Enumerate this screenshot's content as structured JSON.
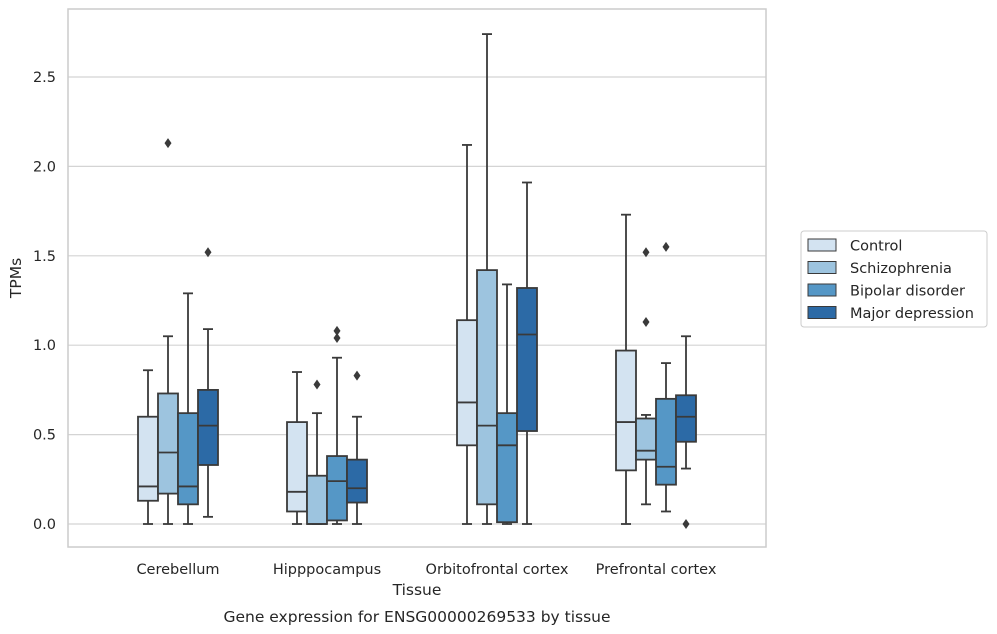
{
  "caption": "Gene expression for ENSG00000269533 by tissue",
  "chart_data": {
    "type": "box",
    "xlabel": "Tissue",
    "ylabel": "TPMs",
    "categories": [
      "Cerebellum",
      "Hipppocampus",
      "Orbitofrontal cortex",
      "Prefrontal cortex"
    ],
    "ylim": [
      -0.13,
      2.88
    ],
    "yticks": [
      0.0,
      0.5,
      1.0,
      1.5,
      2.0,
      2.5
    ],
    "ytick_labels": [
      "0.0",
      "0.5",
      "1.0",
      "1.5",
      "2.0",
      "2.5"
    ],
    "grid": "horizontal",
    "legend_position": "outside-right",
    "colors": {
      "line": "#3a3a3a",
      "grid": "#d4d4d4",
      "frame": "#cccccc"
    },
    "series": [
      {
        "name": "Control",
        "color": "#d3e3f1",
        "boxes": [
          {
            "q1": 0.13,
            "median": 0.21,
            "q3": 0.6,
            "whislo": 0.0,
            "whishi": 0.86,
            "fliers": []
          },
          {
            "q1": 0.07,
            "median": 0.18,
            "q3": 0.57,
            "whislo": 0.0,
            "whishi": 0.85,
            "fliers": []
          },
          {
            "q1": 0.44,
            "median": 0.68,
            "q3": 1.14,
            "whislo": 0.0,
            "whishi": 2.12,
            "fliers": []
          },
          {
            "q1": 0.3,
            "median": 0.57,
            "q3": 0.97,
            "whislo": 0.0,
            "whishi": 1.73,
            "fliers": []
          }
        ]
      },
      {
        "name": "Schizophrenia",
        "color": "#9dc4df",
        "boxes": [
          {
            "q1": 0.17,
            "median": 0.4,
            "q3": 0.73,
            "whislo": 0.0,
            "whishi": 1.05,
            "fliers": [
              2.13
            ]
          },
          {
            "q1": 0.0,
            "median": 0.0,
            "q3": 0.27,
            "whislo": 0.0,
            "whishi": 0.62,
            "fliers": [
              0.78
            ]
          },
          {
            "q1": 0.11,
            "median": 0.55,
            "q3": 1.42,
            "whislo": 0.0,
            "whishi": 2.74,
            "fliers": []
          },
          {
            "q1": 0.36,
            "median": 0.41,
            "q3": 0.59,
            "whislo": 0.11,
            "whishi": 0.61,
            "fliers": [
              1.13,
              1.52
            ]
          }
        ]
      },
      {
        "name": "Bipolar disorder",
        "color": "#5597c6",
        "boxes": [
          {
            "q1": 0.11,
            "median": 0.21,
            "q3": 0.62,
            "whislo": 0.0,
            "whishi": 1.29,
            "fliers": []
          },
          {
            "q1": 0.02,
            "median": 0.24,
            "q3": 0.38,
            "whislo": 0.0,
            "whishi": 0.93,
            "fliers": [
              1.04,
              1.08
            ]
          },
          {
            "q1": 0.01,
            "median": 0.44,
            "q3": 0.62,
            "whislo": 0.0,
            "whishi": 1.34,
            "fliers": []
          },
          {
            "q1": 0.22,
            "median": 0.32,
            "q3": 0.7,
            "whislo": 0.07,
            "whishi": 0.9,
            "fliers": [
              1.55
            ]
          }
        ]
      },
      {
        "name": "Major depression",
        "color": "#2c6aa6",
        "boxes": [
          {
            "q1": 0.33,
            "median": 0.55,
            "q3": 0.75,
            "whislo": 0.04,
            "whishi": 1.09,
            "fliers": [
              1.52
            ]
          },
          {
            "q1": 0.12,
            "median": 0.2,
            "q3": 0.36,
            "whislo": 0.0,
            "whishi": 0.6,
            "fliers": [
              0.83
            ]
          },
          {
            "q1": 0.52,
            "median": 1.06,
            "q3": 1.32,
            "whislo": 0.0,
            "whishi": 1.91,
            "fliers": []
          },
          {
            "q1": 0.46,
            "median": 0.6,
            "q3": 0.72,
            "whislo": 0.31,
            "whishi": 1.05,
            "fliers": [
              0.0
            ]
          }
        ]
      }
    ]
  }
}
